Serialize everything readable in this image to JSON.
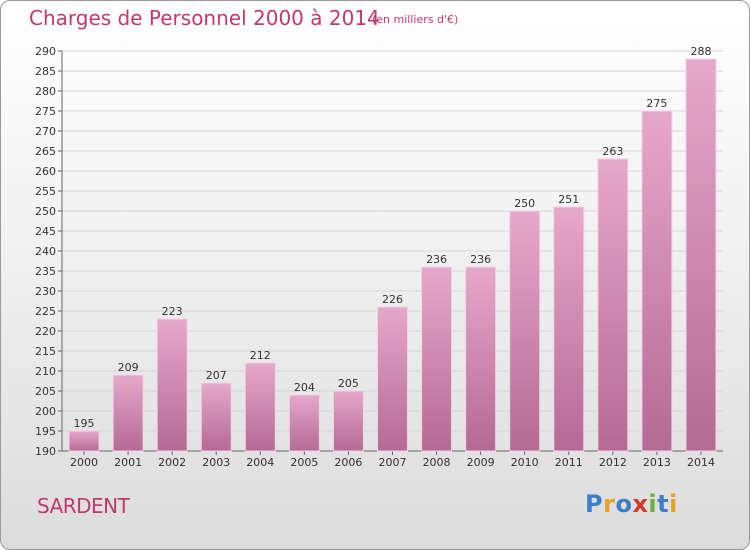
{
  "header": {
    "title": "Charges de Personnel 2000 à 2014",
    "unit_note": "(en milliers d'€)"
  },
  "footer": {
    "place": "SARDENT",
    "logo_text": "Proxiti",
    "logo_letters": [
      {
        "char": "P",
        "color": "#3d7ec9"
      },
      {
        "char": "r",
        "color": "#e8a126"
      },
      {
        "char": "o",
        "color": "#3d7ec9"
      },
      {
        "char": "x",
        "color": "#d23a2f"
      },
      {
        "char": "i",
        "color": "#6cae3f"
      },
      {
        "char": "t",
        "color": "#3d7ec9"
      },
      {
        "char": "i",
        "color": "#e8a126"
      }
    ]
  },
  "colors": {
    "bar_top": "#e6a8cb",
    "bar_bottom": "#b46a95",
    "title": "#c03a6e",
    "grid": "#d6d6d6"
  },
  "chart_data": {
    "type": "bar",
    "title": "Charges de Personnel 2000 à 2014",
    "subtitle": "(en milliers d'€)",
    "xlabel": "",
    "ylabel": "",
    "categories": [
      "2000",
      "2001",
      "2002",
      "2003",
      "2004",
      "2005",
      "2006",
      "2007",
      "2008",
      "2009",
      "2010",
      "2011",
      "2012",
      "2013",
      "2014"
    ],
    "values": [
      195,
      209,
      223,
      207,
      212,
      204,
      205,
      226,
      236,
      236,
      250,
      251,
      263,
      275,
      288
    ],
    "ylim": [
      190,
      290
    ],
    "ytick_step": 5,
    "grid": true,
    "legend": "none"
  }
}
